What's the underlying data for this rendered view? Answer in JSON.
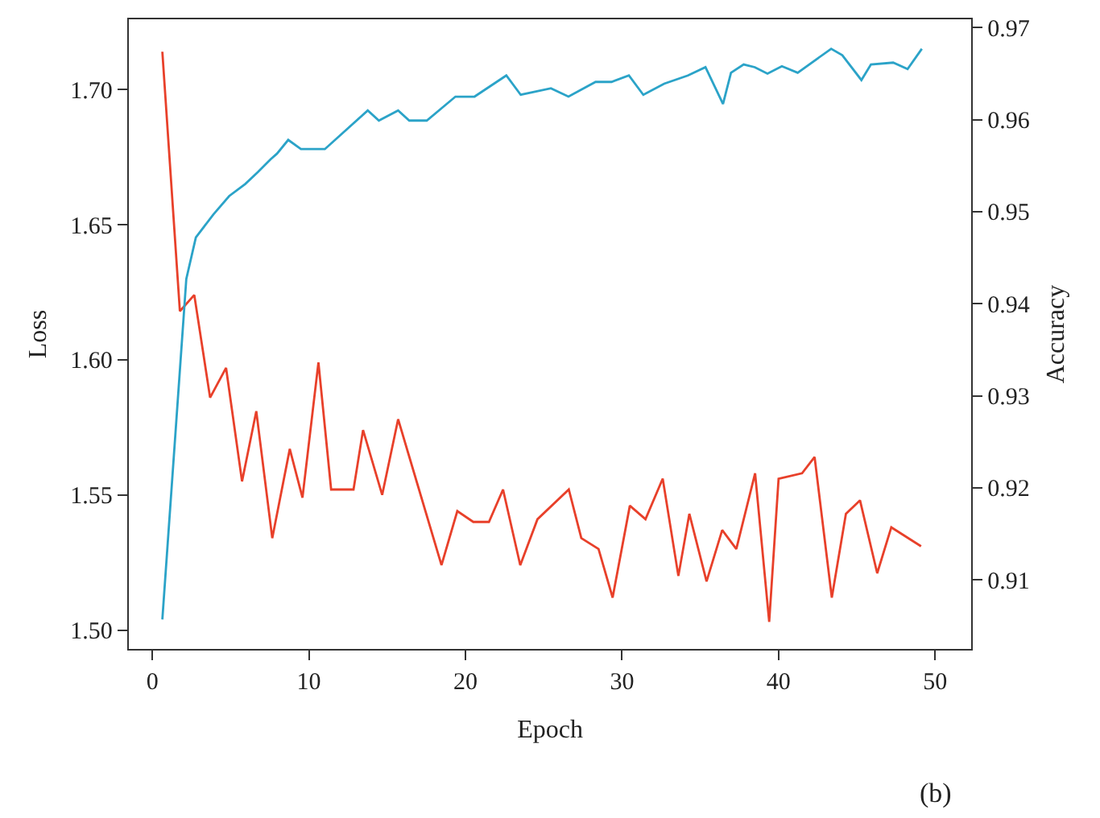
{
  "chart_data": {
    "type": "line",
    "xlabel": "Epoch",
    "ylabel": "Loss",
    "y2label": "Accuracy",
    "annotations": [
      "(b)"
    ],
    "marker": "none",
    "line_style": "solid",
    "xlim": [
      -1.5,
      52.3
    ],
    "xticks": [
      0,
      10,
      20,
      30,
      40,
      50
    ],
    "ylim": [
      1.493,
      1.726
    ],
    "yticks": [
      {
        "value": 1.5,
        "label": "1.50"
      },
      {
        "value": 1.55,
        "label": "1.55"
      },
      {
        "value": 1.6,
        "label": "1.60"
      },
      {
        "value": 1.65,
        "label": "1.65"
      },
      {
        "value": 1.7,
        "label": "1.70"
      }
    ],
    "y2lim": [
      0.9025,
      0.9709
    ],
    "y2ticks": [
      0.91,
      0.92,
      0.93,
      0.94,
      0.95,
      0.96,
      0.97
    ],
    "series": [
      {
        "color": "#e8402a",
        "x": [
          0.64,
          1.76,
          2.68,
          3.69,
          4.71,
          5.73,
          6.64,
          7.66,
          8.78,
          9.59,
          10.61,
          11.42,
          12.85,
          13.46,
          14.68,
          15.7,
          18.47,
          19.48,
          20.5,
          21.5,
          22.4,
          23.5,
          24.6,
          26.6,
          27.4,
          28.5,
          29.4,
          30.5,
          31.5,
          32.6,
          33.6,
          34.3,
          35.4,
          36.4,
          37.3,
          38.5,
          39.4,
          40.0,
          41.5,
          42.3,
          43.4,
          44.3,
          45.2,
          46.3,
          47.2,
          49.1
        ],
        "values": [
          1.714,
          1.618,
          1.624,
          1.586,
          1.597,
          1.555,
          1.581,
          1.534,
          1.567,
          1.549,
          1.599,
          1.552,
          1.552,
          1.574,
          1.55,
          1.578,
          1.524,
          1.544,
          1.54,
          1.54,
          1.552,
          1.524,
          1.541,
          1.552,
          1.534,
          1.53,
          1.512,
          1.546,
          1.541,
          1.556,
          1.52,
          1.543,
          1.518,
          1.537,
          1.53,
          1.558,
          1.503,
          1.556,
          1.558,
          1.564,
          1.512,
          1.543,
          1.548,
          1.521,
          1.538,
          1.531
        ]
      },
      {
        "color": "#2ba3c8",
        "axis": "y2",
        "x": [
          0.64,
          2.17,
          2.78,
          3.9,
          4.91,
          5.93,
          6.74,
          7.56,
          7.96,
          8.68,
          9.49,
          11.02,
          13.76,
          14.47,
          15.7,
          16.41,
          17.53,
          19.36,
          20.58,
          22.61,
          23.53,
          25.46,
          26.58,
          28.31,
          29.33,
          30.44,
          31.36,
          32.69,
          34.21,
          35.33,
          36.45,
          36.96,
          37.77,
          38.48,
          39.29,
          40.21,
          41.22,
          43.36,
          44.07,
          45.29,
          45.9,
          47.32,
          48.24,
          49.15
        ],
        "values": [
          0.9057,
          0.9427,
          0.9472,
          0.9497,
          0.9517,
          0.953,
          0.9543,
          0.9557,
          0.9563,
          0.9578,
          0.9568,
          0.9568,
          0.961,
          0.9599,
          0.961,
          0.9599,
          0.9599,
          0.9625,
          0.9625,
          0.9648,
          0.9627,
          0.9634,
          0.9625,
          0.9641,
          0.9641,
          0.9648,
          0.9627,
          0.9639,
          0.9648,
          0.9657,
          0.9617,
          0.9651,
          0.966,
          0.9657,
          0.965,
          0.9658,
          0.9651,
          0.9677,
          0.967,
          0.9643,
          0.966,
          0.9662,
          0.9655,
          0.9677
        ]
      }
    ]
  }
}
